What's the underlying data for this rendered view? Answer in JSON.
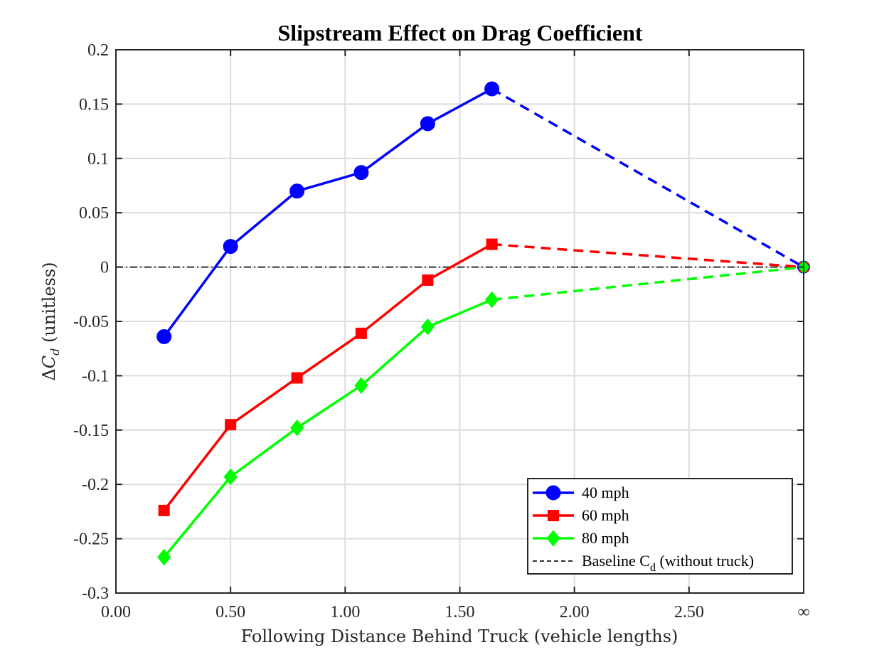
{
  "chart_data": {
    "type": "line",
    "title": "Slipstream Effect on Drag Coefficient",
    "xlabel": "Following Distance Behind Truck (vehicle lengths)",
    "ylabel": "ΔCd (unitless)",
    "ylabel_parts": {
      "delta": "Δ",
      "c": "C",
      "sub": "d",
      "rest": " (unitless)"
    },
    "xlim": [
      0,
      3.0
    ],
    "ylim": [
      -0.3,
      0.2
    ],
    "x_ticks": [
      {
        "v": 0.0,
        "label": "0.00"
      },
      {
        "v": 0.5,
        "label": "0.50"
      },
      {
        "v": 1.0,
        "label": "1.00"
      },
      {
        "v": 1.5,
        "label": "1.50"
      },
      {
        "v": 2.0,
        "label": "2.00"
      },
      {
        "v": 2.5,
        "label": "2.50"
      },
      {
        "v": 3.0,
        "label": "∞"
      }
    ],
    "y_ticks": [
      {
        "v": 0.2,
        "label": "0.2"
      },
      {
        "v": 0.15,
        "label": "0.15"
      },
      {
        "v": 0.1,
        "label": "0.1"
      },
      {
        "v": 0.05,
        "label": "0.05"
      },
      {
        "v": 0.0,
        "label": "0"
      },
      {
        "v": -0.05,
        "label": "-0.05"
      },
      {
        "v": -0.1,
        "label": "-0.1"
      },
      {
        "v": -0.15,
        "label": "-0.15"
      },
      {
        "v": -0.2,
        "label": "-0.2"
      },
      {
        "v": -0.25,
        "label": "-0.25"
      },
      {
        "v": -0.3,
        "label": "-0.3"
      }
    ],
    "grid": true,
    "legend_position": "bottom-right",
    "infinity_x": 3.0,
    "x": [
      0.21,
      0.5,
      0.79,
      1.07,
      1.36,
      1.64
    ],
    "series": [
      {
        "name": "40 mph",
        "color": "#0000ff",
        "marker": "circle",
        "values": [
          -0.064,
          0.019,
          0.07,
          0.087,
          0.132,
          0.164
        ],
        "infinity_value": 0.0
      },
      {
        "name": "60 mph",
        "color": "#ff0000",
        "marker": "square",
        "values": [
          -0.224,
          -0.145,
          -0.102,
          -0.061,
          -0.012,
          0.021
        ],
        "infinity_value": 0.0
      },
      {
        "name": "80 mph",
        "color": "#00ff00",
        "marker": "diamond",
        "values": [
          -0.267,
          -0.193,
          -0.148,
          -0.109,
          -0.055,
          -0.03
        ],
        "infinity_value": 0.0
      }
    ],
    "baseline": {
      "value": 0.0,
      "color": "#333333",
      "legend_main": "Baseline C",
      "legend_sub": "d",
      "legend_rest": " (without truck)"
    }
  }
}
